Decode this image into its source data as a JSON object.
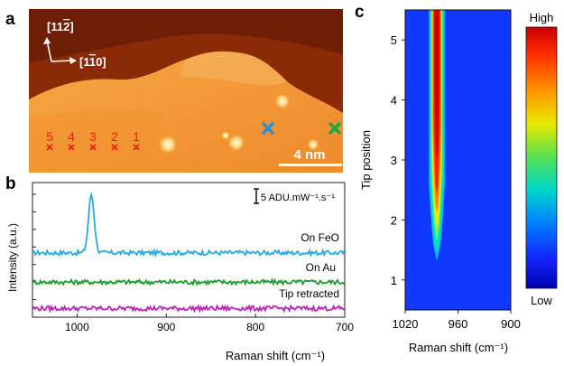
{
  "panels": {
    "a": "a",
    "b": "b",
    "c": "c"
  },
  "stm": {
    "dir1": "[11",
    "dir1_bar": "2",
    "dir1_end": "]",
    "dir2": "[1",
    "dir2_bar": "1",
    "dir2_end": "0]",
    "scale_label": "4 nm",
    "positions": [
      "5",
      "4",
      "3",
      "2",
      "1"
    ],
    "colors": {
      "blue": "#2a8fd6",
      "green": "#1ea640",
      "red": "#e8201c"
    }
  },
  "chart_data": [
    {
      "type": "line",
      "panel": "b",
      "xlabel": "Raman shift (cm⁻¹)",
      "ylabel": "Intensity (a.u.)",
      "xlim": [
        1050,
        700
      ],
      "xticks": [
        "1000",
        "900",
        "800",
        "700"
      ],
      "xtick_values": [
        1000,
        900,
        800,
        700
      ],
      "scale_bar": "5 ADU.mW⁻¹.s⁻¹",
      "series": [
        {
          "name": "On FeO",
          "color": "#29a9e0",
          "offset": 22,
          "peak_x": 984,
          "peak_height": 20
        },
        {
          "name": "On Au",
          "color": "#1c9a2a",
          "offset": 12,
          "peak_x": null,
          "peak_height": 0
        },
        {
          "name": "Tip retracted",
          "color": "#bb22bb",
          "offset": 3,
          "peak_x": null,
          "peak_height": 0
        }
      ]
    },
    {
      "type": "heatmap",
      "panel": "c",
      "xlabel": "Raman shift (cm⁻¹)",
      "ylabel": "Tip position",
      "xlim": [
        1020,
        900
      ],
      "ylim": [
        0.5,
        5.5
      ],
      "xticks": [
        "1020",
        "960",
        "900"
      ],
      "xtick_values": [
        1020,
        960,
        900
      ],
      "yticks": [
        "1",
        "2",
        "3",
        "4",
        "5"
      ],
      "ytick_values": [
        1,
        2,
        3,
        4,
        5
      ],
      "peak_center": 984,
      "onset_position": 1.4,
      "colorbar": {
        "high": "High",
        "low": "Low"
      }
    }
  ]
}
